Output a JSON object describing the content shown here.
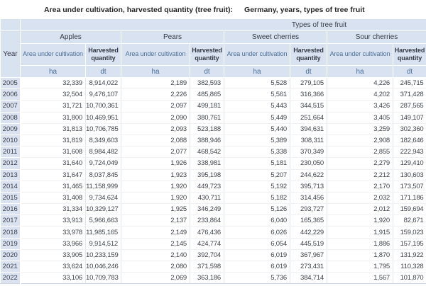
{
  "title": {
    "left": "Area under cultivation, harvested quantity (tree fruit):",
    "right": "Germany, years, types of tree fruit"
  },
  "table": {
    "span_header": "Types of tree fruit",
    "year_header": "Year",
    "groups": [
      "Apples",
      "Pears",
      "Sweet cherries",
      "Sour cherries"
    ],
    "measure_area": "Area under cultivation",
    "measure_harvested": "Harvested quantity",
    "unit_area": "ha",
    "unit_harvested": "dt"
  },
  "colors": {
    "header_bg": "#d9e2f1",
    "year_cell_bg": "#dbe3f1",
    "link_text": "#4c6f97",
    "dark_header_text": "#333a45",
    "data_text": "#3f444c",
    "grid_vertical": "#e0e4ec",
    "grid_horizontal": "#eff1f5",
    "table_bottom_border": "#ccd5e1"
  },
  "chart_data": {
    "type": "table",
    "title": "Area under cultivation, harvested quantity (tree fruit): Germany, years, types of tree fruit",
    "columns": [
      "Year",
      "Apples - Area under cultivation (ha)",
      "Apples - Harvested quantity (dt)",
      "Pears - Area under cultivation (ha)",
      "Pears - Harvested quantity (dt)",
      "Sweet cherries - Area under cultivation (ha)",
      "Sweet cherries - Harvested quantity (dt)",
      "Sour cherries - Area under cultivation (ha)",
      "Sour cherries - Harvested quantity (dt)"
    ],
    "rows": [
      [
        2005,
        32339,
        8914022,
        2189,
        382593,
        5528,
        279105,
        4226,
        245715
      ],
      [
        2006,
        32504,
        9476107,
        2226,
        485865,
        5561,
        316366,
        4202,
        371428
      ],
      [
        2007,
        31721,
        10700361,
        2097,
        499181,
        5443,
        344515,
        3426,
        287565
      ],
      [
        2008,
        31800,
        10469951,
        2090,
        380761,
        5449,
        251664,
        3405,
        149107
      ],
      [
        2009,
        31813,
        10706785,
        2093,
        523188,
        5440,
        394631,
        3259,
        302360
      ],
      [
        2010,
        31819,
        8349603,
        2088,
        388946,
        5389,
        308311,
        2908,
        182646
      ],
      [
        2011,
        31608,
        8984482,
        2077,
        468542,
        5338,
        370349,
        2855,
        222943
      ],
      [
        2012,
        31640,
        9724049,
        1926,
        338981,
        5181,
        230050,
        2279,
        129410
      ],
      [
        2013,
        31647,
        8037845,
        1923,
        395198,
        5207,
        244622,
        2212,
        130603
      ],
      [
        2014,
        31465,
        11158999,
        1920,
        449723,
        5192,
        395713,
        2170,
        173507
      ],
      [
        2015,
        31408,
        9734624,
        1920,
        430711,
        5182,
        314456,
        2032,
        171186
      ],
      [
        2016,
        31334,
        10329127,
        1925,
        346249,
        5126,
        293727,
        2012,
        159694
      ],
      [
        2017,
        33913,
        5966663,
        2137,
        233864,
        6040,
        165365,
        1920,
        82671
      ],
      [
        2018,
        33978,
        11985165,
        2149,
        476436,
        6026,
        442229,
        1915,
        159023
      ],
      [
        2019,
        33966,
        9914512,
        2145,
        424774,
        6054,
        445519,
        1886,
        157195
      ],
      [
        2020,
        33905,
        10233159,
        2140,
        392704,
        6019,
        367967,
        1870,
        131922
      ],
      [
        2021,
        33624,
        10046246,
        2080,
        371598,
        6019,
        273431,
        1795,
        110328
      ],
      [
        2022,
        33106,
        10709783,
        2069,
        363186,
        5736,
        384714,
        1567,
        101870
      ]
    ]
  }
}
